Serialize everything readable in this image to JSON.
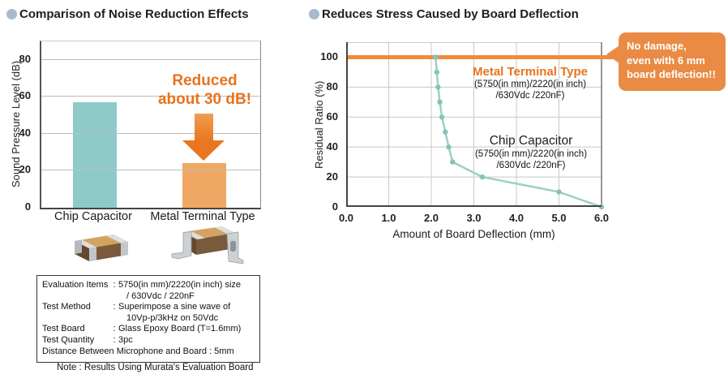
{
  "colors": {
    "accent_orange": "#E8731E",
    "line_orange": "#EF8C3A",
    "bar_teal": "#8FCACB",
    "bar_orange": "#F0A763",
    "series_teal": "#9BCFC6",
    "marker_teal": "#83C4B9",
    "bubble_orange": "#E98B44",
    "bullet_blue_gray": "#A7BBCD"
  },
  "left": {
    "title": "Comparison of Noise Reduction Effects",
    "annotation_line1": "Reduced",
    "annotation_line2": "about 30 dB!",
    "note_box": {
      "rows": [
        {
          "label": "Evaluation Items",
          "value_lines": [
            "5750(in mm)/2220(in inch) size",
            "/ 630Vdc / 220nF"
          ]
        },
        {
          "label": "Test Method",
          "value_lines": [
            "Superimpose a sine wave of",
            "10Vp-p/3kHz on 50Vdc"
          ]
        },
        {
          "label": "Test Board",
          "value_lines": [
            "Glass Epoxy Board (T=1.6mm)"
          ]
        },
        {
          "label": "Test Quantity",
          "value_lines": [
            "3pc"
          ]
        }
      ],
      "full_line": "Distance Between Microphone and Board : 5mm"
    },
    "note": "Note : Results Using Murata's Evaluation Board"
  },
  "right": {
    "title": "Reduces Stress Caused by Board Deflection",
    "metal_label": "Metal Terminal Type",
    "metal_detail1": "(5750(in mm)/2220(in inch)",
    "metal_detail2": "/630Vdc /220nF)",
    "chip_label": "Chip Capacitor",
    "chip_detail1": "(5750(in mm)/2220(in inch)",
    "chip_detail2": "/630Vdc /220nF)",
    "callout_line1": "No damage,",
    "callout_line2": "even with 6 mm",
    "callout_line3": "board deflection!!"
  },
  "chart_data": [
    {
      "type": "bar",
      "title": "Comparison of Noise Reduction Effects",
      "categories": [
        "Chip Capacitor",
        "Metal Terminal Type"
      ],
      "values": [
        57,
        24
      ],
      "bar_colors": [
        "#8FCACB",
        "#F0A763"
      ],
      "xlabel": "",
      "ylabel": "Sound Pressure Level (dB)",
      "ylim": [
        0,
        90
      ],
      "yticks": [
        0,
        20,
        40,
        60,
        80
      ],
      "grid": "horizontal",
      "annotation": "Reduced about 30 dB!"
    },
    {
      "type": "line",
      "title": "Reduces Stress Caused by Board Deflection",
      "xlabel": "Amount of Board Deflection (mm)",
      "ylabel": "Residual Ratio (%)",
      "xlim": [
        0,
        6
      ],
      "ylim": [
        0,
        110
      ],
      "xticks": [
        "0.0",
        "1.0",
        "2.0",
        "3.0",
        "4.0",
        "5.0",
        "6.0"
      ],
      "yticks": [
        0,
        20,
        40,
        60,
        80,
        100
      ],
      "grid": "both",
      "legend_position": "inside-right",
      "series": [
        {
          "name": "Metal Terminal Type",
          "detail": "(5750(in mm)/2220(in inch) /630Vdc /220nF)",
          "color": "#EF8C3A",
          "width": 5,
          "points": [
            [
              0,
              100
            ],
            [
              6.55,
              100
            ]
          ]
        },
        {
          "name": "Chip Capacitor",
          "detail": "(5750(in mm)/2220(in inch) /630Vdc /220nF)",
          "color": "#9BCFC6",
          "width": 2.5,
          "points": [
            [
              2.1,
              100
            ],
            [
              2.13,
              90
            ],
            [
              2.16,
              80
            ],
            [
              2.2,
              70
            ],
            [
              2.25,
              60
            ],
            [
              2.33,
              50
            ],
            [
              2.41,
              40
            ],
            [
              2.5,
              30
            ],
            [
              3.2,
              20
            ],
            [
              5.0,
              10
            ],
            [
              6.0,
              0
            ]
          ]
        }
      ],
      "callout": "No damage, even with 6 mm board deflection!!"
    }
  ]
}
